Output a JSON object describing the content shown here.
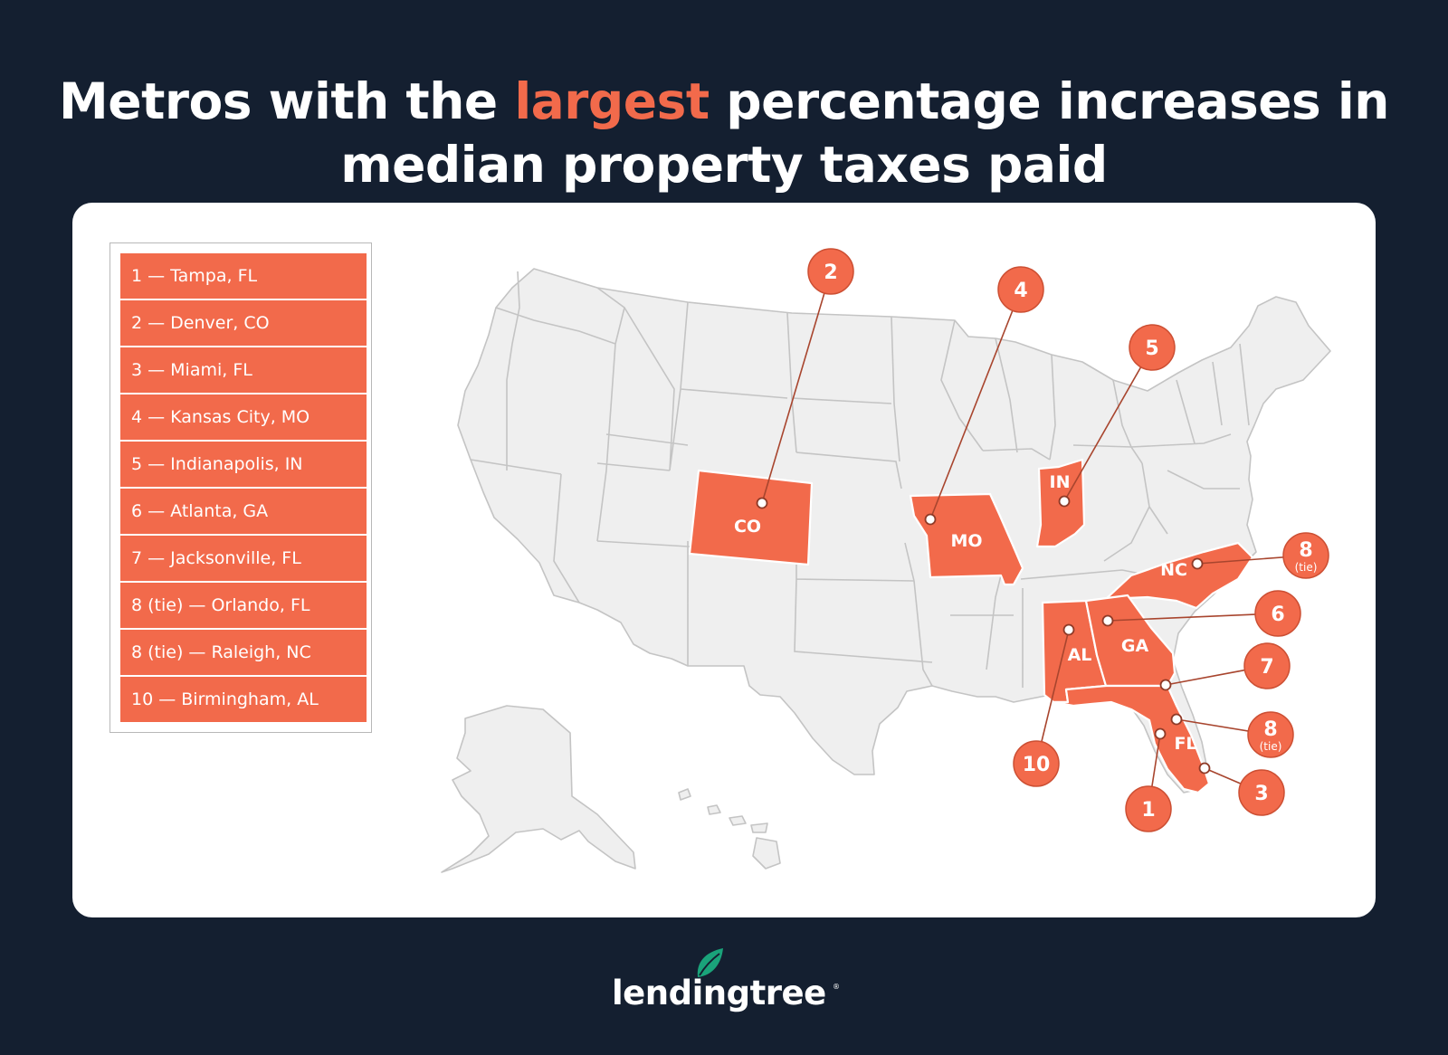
{
  "title": {
    "line1_before": "Metros with the ",
    "line1_highlight": "largest",
    "line1_after": " percentage increases in",
    "line2": "median property taxes paid"
  },
  "colors": {
    "background": "#141f30",
    "highlight": "#f26a4b",
    "state_fill": "#efefef",
    "state_border": "#c4c4c4",
    "logo_green": "#1aa37a"
  },
  "legend": {
    "items": [
      "1 — Tampa, FL",
      "2 — Denver, CO",
      "3 — Miami, FL",
      "4 — Kansas City, MO",
      "5 — Indianapolis, IN",
      "6 — Atlanta, GA",
      "7 — Jacksonville, FL",
      "8 (tie) — Orlando, FL",
      "8 (tie) — Raleigh, NC",
      "10 — Birmingham, AL"
    ]
  },
  "map": {
    "states": [
      {
        "abbr": "CO"
      },
      {
        "abbr": "MO"
      },
      {
        "abbr": "IN"
      },
      {
        "abbr": "NC"
      },
      {
        "abbr": "AL"
      },
      {
        "abbr": "GA"
      },
      {
        "abbr": "FL"
      }
    ],
    "markers": [
      {
        "rank": "2",
        "tie": "",
        "metro": "Denver, CO"
      },
      {
        "rank": "4",
        "tie": "",
        "metro": "Kansas City, MO"
      },
      {
        "rank": "5",
        "tie": "",
        "metro": "Indianapolis, IN"
      },
      {
        "rank": "8",
        "tie": "(tie)",
        "metro": "Raleigh, NC"
      },
      {
        "rank": "6",
        "tie": "",
        "metro": "Atlanta, GA"
      },
      {
        "rank": "7",
        "tie": "",
        "metro": "Jacksonville, FL"
      },
      {
        "rank": "8",
        "tie": "(tie)",
        "metro": "Orlando, FL"
      },
      {
        "rank": "10",
        "tie": "",
        "metro": "Birmingham, AL"
      },
      {
        "rank": "1",
        "tie": "",
        "metro": "Tampa, FL"
      },
      {
        "rank": "3",
        "tie": "",
        "metro": "Miami, FL"
      }
    ]
  },
  "logo": {
    "text": "lendingtree",
    "mark": "®",
    "icon": "leaf-icon"
  }
}
